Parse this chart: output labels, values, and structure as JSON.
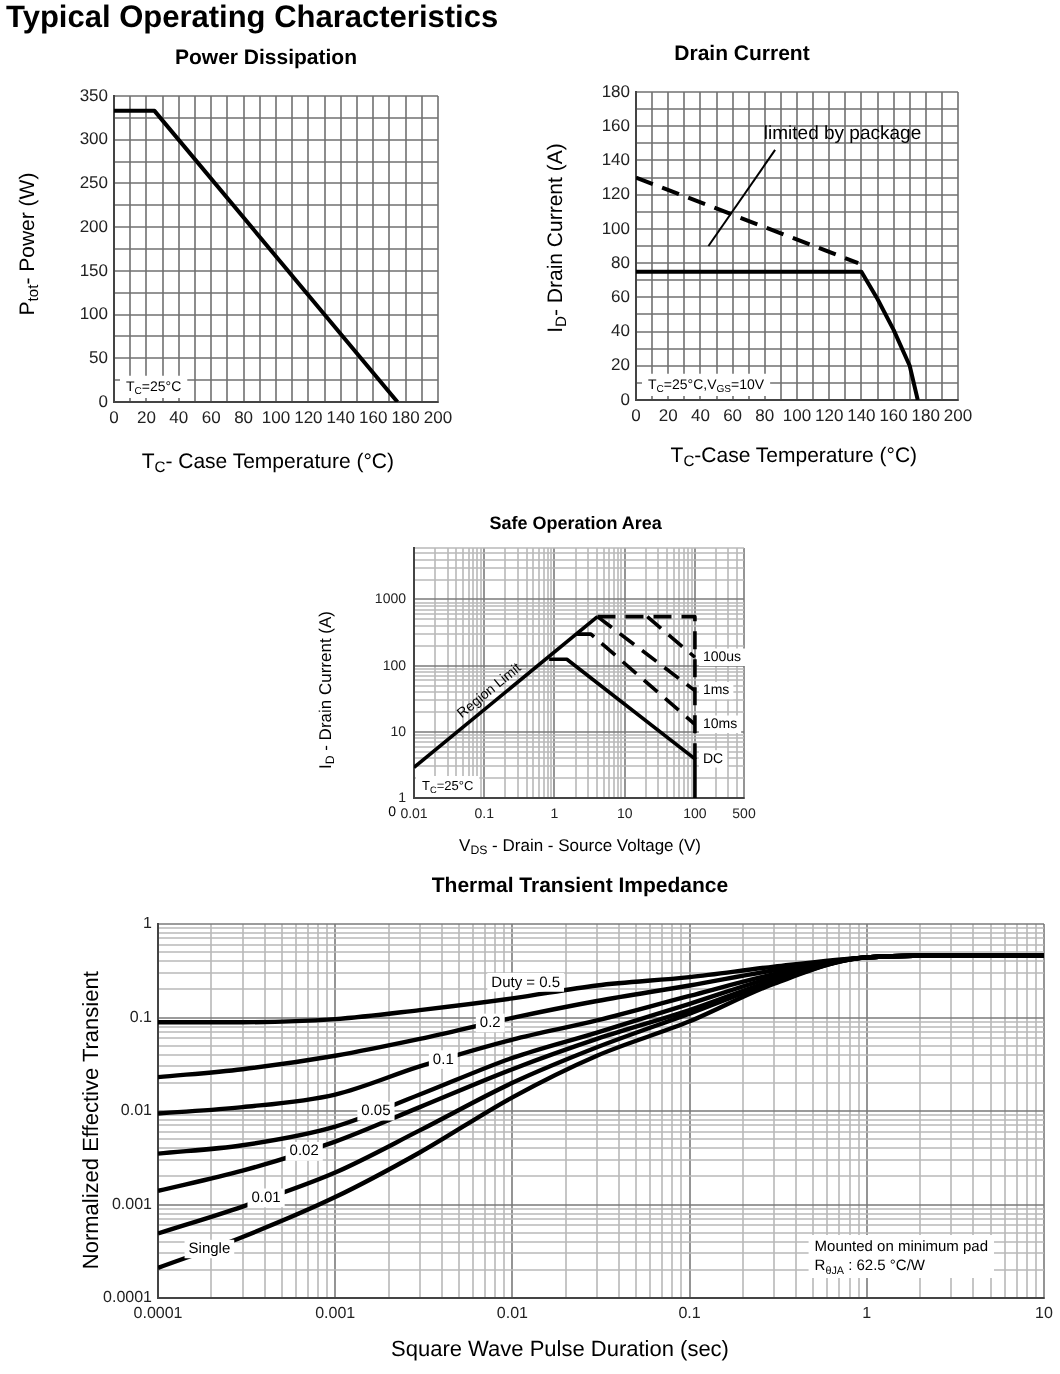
{
  "chart_data": [
    {
      "type": "line",
      "title": "Typical Operating Characteristics",
      "subtitle": "Power Dissipation",
      "xlabel": "T$_{C}$- Case Temperature (°C)",
      "ylabel": "P$_{tot}$- Power (W)",
      "annotations": [
        "T$_{C}$=25°C"
      ],
      "x": [
        0,
        25,
        175
      ],
      "values": [
        333,
        333,
        0
      ],
      "color": "#000000",
      "xlim": [
        0,
        200
      ],
      "ylim": [
        0,
        350
      ],
      "xticks": [
        0,
        {
          "value": 10,
          "label": null
        },
        20,
        {
          "value": 30,
          "label": null
        },
        40,
        {
          "value": 50,
          "label": null
        },
        60,
        {
          "value": 70,
          "label": null
        },
        80,
        {
          "value": 90,
          "label": null
        },
        100,
        {
          "value": 110,
          "label": null
        },
        120,
        {
          "value": 130,
          "label": null
        },
        140,
        {
          "value": 150,
          "label": null
        },
        160,
        {
          "value": 170,
          "label": null
        },
        180,
        {
          "value": 190,
          "label": null
        },
        200
      ],
      "yticks": [
        0,
        {
          "value": 25,
          "label": null
        },
        50,
        {
          "value": 75,
          "label": null
        },
        100,
        {
          "value": 125,
          "label": null
        },
        150,
        {
          "value": 175,
          "label": null
        },
        200,
        {
          "value": 225,
          "label": null
        },
        250,
        {
          "value": 275,
          "label": null
        },
        300,
        {
          "value": 325,
          "label": null
        },
        350
      ],
      "grid": true
    },
    {
      "type": "line",
      "title": "Drain Current",
      "xlabel": "T$_{C}$-Case Temperature (°C)",
      "ylabel": "I$_{D}$- Drain Current (A)",
      "annotations": [
        "T$_{C}$=25°C,V$_{GS}$=10V",
        "limited by package"
      ],
      "series": [
        {
          "x": [
            0,
            140,
            150,
            160,
            170,
            175
          ],
          "values": [
            75,
            75,
            59,
            41,
            20,
            0
          ],
          "color": "#000000"
        },
        {
          "x": [
            0,
            138
          ],
          "values": [
            130,
            80
          ],
          "color": "#000000",
          "line_style": "dashed"
        }
      ],
      "xlim": [
        0,
        200
      ],
      "ylim": [
        0,
        180
      ],
      "xticks": [
        0,
        {
          "value": 10,
          "label": null
        },
        20,
        {
          "value": 30,
          "label": null
        },
        40,
        {
          "value": 50,
          "label": null
        },
        60,
        {
          "value": 70,
          "label": null
        },
        80,
        {
          "value": 90,
          "label": null
        },
        100,
        {
          "value": 110,
          "label": null
        },
        120,
        {
          "value": 130,
          "label": null
        },
        140,
        {
          "value": 150,
          "label": null
        },
        160,
        {
          "value": 170,
          "label": null
        },
        180,
        {
          "value": 190,
          "label": null
        },
        200
      ],
      "yticks": [
        0,
        {
          "value": 10,
          "label": null
        },
        20,
        {
          "value": 30,
          "label": null
        },
        40,
        {
          "value": 50,
          "label": null
        },
        60,
        {
          "value": 70,
          "label": null
        },
        80,
        {
          "value": 90,
          "label": null
        },
        100,
        {
          "value": 110,
          "label": null
        },
        120,
        {
          "value": 130,
          "label": null
        },
        140,
        {
          "value": 150,
          "label": null
        },
        160,
        {
          "value": 170,
          "label": null
        },
        180
      ],
      "grid": true
    },
    {
      "type": "line",
      "title": "Safe Operation Area",
      "xlabel": "V$_{DS}$ - Drain - Source Voltage (V)",
      "ylabel": "I$_{D}$ - Drain Current (A)",
      "annotations": [
        "T$_{C}$=25°C",
        "0"
      ],
      "log": "xy",
      "series": [
        {
          "name": "Region Limit",
          "x": [
            0.01,
            4.1
          ],
          "values": [
            2.9,
            550
          ],
          "color": "#000000"
        },
        {
          "x": [
            4.1,
            100,
            100
          ],
          "values": [
            550,
            550,
            3.9
          ],
          "color": "#000000",
          "line_style": "dashed"
        },
        {
          "name": "100us",
          "x": [
            21,
            100
          ],
          "values": [
            550,
            134
          ],
          "color": "#000000",
          "line_style": "dashed"
        },
        {
          "name": "1ms",
          "x": [
            4.1,
            100
          ],
          "values": [
            550,
            42
          ],
          "color": "#000000",
          "line_style": "dashed"
        },
        {
          "name": "10ms",
          "x": [
            2.1,
            3.3,
            100
          ],
          "values": [
            300,
            300,
            13
          ],
          "color": "#000000",
          "line_style": "dashed"
        },
        {
          "name": "DC",
          "x": [
            0.84,
            1.5,
            100,
            100
          ],
          "values": [
            125,
            125,
            3.9,
            1
          ],
          "color": "#000000"
        }
      ],
      "xlim": [
        0.01,
        500
      ],
      "ylim": [
        1,
        6000
      ],
      "xticks": [
        0.01,
        {
          "value": 0.02,
          "label": null
        },
        {
          "value": 0.03,
          "label": null
        },
        {
          "value": 0.04,
          "label": null
        },
        {
          "value": 0.05,
          "label": null
        },
        {
          "value": 0.06,
          "label": null
        },
        {
          "value": 0.07,
          "label": null
        },
        {
          "value": 0.08,
          "label": null
        },
        {
          "value": 0.09,
          "label": null
        },
        0.1,
        {
          "value": 0.2,
          "label": null
        },
        {
          "value": 0.3,
          "label": null
        },
        {
          "value": 0.4,
          "label": null
        },
        {
          "value": 0.5,
          "label": null
        },
        {
          "value": 0.6,
          "label": null
        },
        {
          "value": 0.7,
          "label": null
        },
        {
          "value": 0.8,
          "label": null
        },
        {
          "value": 0.9,
          "label": null
        },
        1,
        {
          "value": 2,
          "label": null
        },
        {
          "value": 3,
          "label": null
        },
        {
          "value": 4,
          "label": null
        },
        {
          "value": 5,
          "label": null
        },
        {
          "value": 6,
          "label": null
        },
        {
          "value": 7,
          "label": null
        },
        {
          "value": 8,
          "label": null
        },
        {
          "value": 9,
          "label": null
        },
        10,
        {
          "value": 20,
          "label": null
        },
        {
          "value": 30,
          "label": null
        },
        {
          "value": 40,
          "label": null
        },
        {
          "value": 50,
          "label": null
        },
        {
          "value": 60,
          "label": null
        },
        {
          "value": 70,
          "label": null
        },
        {
          "value": 80,
          "label": null
        },
        {
          "value": 90,
          "label": null
        },
        100,
        {
          "value": 200,
          "label": null
        },
        {
          "value": 300,
          "label": null
        },
        {
          "value": 400,
          "label": null
        },
        500
      ],
      "yticks": [
        1,
        {
          "value": 2,
          "label": null
        },
        {
          "value": 3,
          "label": null
        },
        {
          "value": 4,
          "label": null
        },
        {
          "value": 5,
          "label": null
        },
        {
          "value": 6,
          "label": null
        },
        {
          "value": 7,
          "label": null
        },
        {
          "value": 8,
          "label": null
        },
        {
          "value": 9,
          "label": null
        },
        10,
        {
          "value": 20,
          "label": null
        },
        {
          "value": 30,
          "label": null
        },
        {
          "value": 40,
          "label": null
        },
        {
          "value": 50,
          "label": null
        },
        {
          "value": 60,
          "label": null
        },
        {
          "value": 70,
          "label": null
        },
        {
          "value": 80,
          "label": null
        },
        {
          "value": 90,
          "label": null
        },
        100,
        {
          "value": 200,
          "label": null
        },
        {
          "value": 300,
          "label": null
        },
        {
          "value": 400,
          "label": null
        },
        {
          "value": 500,
          "label": null
        },
        {
          "value": 600,
          "label": null
        },
        {
          "value": 700,
          "label": null
        },
        {
          "value": 800,
          "label": null
        },
        {
          "value": 900,
          "label": null
        },
        1000,
        {
          "value": 2000,
          "label": null
        },
        {
          "value": 3000,
          "label": null
        },
        {
          "value": 4000,
          "label": null
        },
        {
          "value": 5000,
          "label": null
        },
        {
          "value": 6000,
          "label": null
        }
      ],
      "grid": true
    },
    {
      "type": "line",
      "title": "Thermal Transient Impedance",
      "xlabel": "Square Wave Pulse Duration (sec)",
      "ylabel": "Normalized Effective Transient",
      "annotations": [
        "Mounted on minimum pad",
        "R$_{θJA}$ : 62.5 °C/W"
      ],
      "log": "xy",
      "x": [
        0.0001,
        0.0003,
        0.001,
        0.003,
        0.01,
        0.03,
        0.1,
        0.3,
        1,
        3,
        10
      ],
      "series": [
        {
          "name": "Duty = 0.5",
          "values": [
            0.089,
            0.089,
            0.096,
            0.12,
            0.16,
            0.22,
            0.27,
            0.35,
            0.44,
            0.46,
            0.46
          ],
          "color": "#000000"
        },
        {
          "name": "0.2",
          "values": [
            0.023,
            0.028,
            0.039,
            0.059,
            0.099,
            0.15,
            0.22,
            0.32,
            0.44,
            0.46,
            0.46
          ],
          "color": "#000000"
        },
        {
          "name": "0.1",
          "values": [
            0.0094,
            0.011,
            0.015,
            0.03,
            0.058,
            0.093,
            0.17,
            0.29,
            0.44,
            0.46,
            0.46
          ],
          "color": "#000000"
        },
        {
          "name": "0.05",
          "values": [
            0.0035,
            0.0043,
            0.0068,
            0.015,
            0.037,
            0.069,
            0.14,
            0.27,
            0.44,
            0.46,
            0.46
          ],
          "color": "#000000"
        },
        {
          "name": "0.02",
          "values": [
            0.0014,
            0.0023,
            0.0047,
            0.011,
            0.028,
            0.059,
            0.12,
            0.25,
            0.44,
            0.46,
            0.46
          ],
          "color": "#000000"
        },
        {
          "name": "0.01",
          "values": [
            0.00049,
            0.00095,
            0.0022,
            0.0062,
            0.02,
            0.048,
            0.11,
            0.24,
            0.44,
            0.46,
            0.46
          ],
          "color": "#000000"
        },
        {
          "name": "Single",
          "values": [
            0.00021,
            0.00045,
            0.0012,
            0.0036,
            0.014,
            0.039,
            0.091,
            0.23,
            0.44,
            0.46,
            0.46
          ],
          "color": "#000000"
        }
      ],
      "xlim": [
        0.0001,
        10
      ],
      "ylim": [
        0.0001,
        1
      ],
      "xticks": [
        0.0001,
        {
          "value": 0.0002,
          "label": null
        },
        {
          "value": 0.0003,
          "label": null
        },
        {
          "value": 0.0004,
          "label": null
        },
        {
          "value": 0.0005,
          "label": null
        },
        {
          "value": 0.0006,
          "label": null
        },
        {
          "value": 0.0007,
          "label": null
        },
        {
          "value": 0.0008,
          "label": null
        },
        {
          "value": 0.0009,
          "label": null
        },
        0.001,
        {
          "value": 0.002,
          "label": null
        },
        {
          "value": 0.003,
          "label": null
        },
        {
          "value": 0.004,
          "label": null
        },
        {
          "value": 0.005,
          "label": null
        },
        {
          "value": 0.006,
          "label": null
        },
        {
          "value": 0.007,
          "label": null
        },
        {
          "value": 0.008,
          "label": null
        },
        {
          "value": 0.009,
          "label": null
        },
        0.01,
        {
          "value": 0.02,
          "label": null
        },
        {
          "value": 0.03,
          "label": null
        },
        {
          "value": 0.04,
          "label": null
        },
        {
          "value": 0.05,
          "label": null
        },
        {
          "value": 0.06,
          "label": null
        },
        {
          "value": 0.07,
          "label": null
        },
        {
          "value": 0.08,
          "label": null
        },
        {
          "value": 0.09,
          "label": null
        },
        0.1,
        {
          "value": 0.2,
          "label": null
        },
        {
          "value": 0.3,
          "label": null
        },
        {
          "value": 0.4,
          "label": null
        },
        {
          "value": 0.5,
          "label": null
        },
        {
          "value": 0.6,
          "label": null
        },
        {
          "value": 0.7,
          "label": null
        },
        {
          "value": 0.8,
          "label": null
        },
        {
          "value": 0.9,
          "label": null
        },
        1,
        {
          "value": 2,
          "label": null
        },
        {
          "value": 3,
          "label": null
        },
        {
          "value": 4,
          "label": null
        },
        {
          "value": 5,
          "label": null
        },
        {
          "value": 6,
          "label": null
        },
        {
          "value": 7,
          "label": null
        },
        {
          "value": 8,
          "label": null
        },
        {
          "value": 9,
          "label": null
        },
        10
      ],
      "yticks": [
        0.0001,
        {
          "value": 0.0002,
          "label": null
        },
        {
          "value": 0.0003,
          "label": null
        },
        {
          "value": 0.0004,
          "label": null
        },
        {
          "value": 0.0005,
          "label": null
        },
        {
          "value": 0.0006,
          "label": null
        },
        {
          "value": 0.0007,
          "label": null
        },
        {
          "value": 0.0008,
          "label": null
        },
        {
          "value": 0.0009,
          "label": null
        },
        0.001,
        {
          "value": 0.002,
          "label": null
        },
        {
          "value": 0.003,
          "label": null
        },
        {
          "value": 0.004,
          "label": null
        },
        {
          "value": 0.005,
          "label": null
        },
        {
          "value": 0.006,
          "label": null
        },
        {
          "value": 0.007,
          "label": null
        },
        {
          "value": 0.008,
          "label": null
        },
        {
          "value": 0.009,
          "label": null
        },
        0.01,
        {
          "value": 0.02,
          "label": null
        },
        {
          "value": 0.03,
          "label": null
        },
        {
          "value": 0.04,
          "label": null
        },
        {
          "value": 0.05,
          "label": null
        },
        {
          "value": 0.06,
          "label": null
        },
        {
          "value": 0.07,
          "label": null
        },
        {
          "value": 0.08,
          "label": null
        },
        {
          "value": 0.09,
          "label": null
        },
        0.1,
        {
          "value": 0.2,
          "label": null
        },
        {
          "value": 0.3,
          "label": null
        },
        {
          "value": 0.4,
          "label": null
        },
        {
          "value": 0.5,
          "label": null
        },
        {
          "value": 0.6,
          "label": null
        },
        {
          "value": 0.7,
          "label": null
        },
        {
          "value": 0.8,
          "label": null
        },
        {
          "value": 0.9,
          "label": null
        },
        1
      ],
      "grid": true
    }
  ]
}
